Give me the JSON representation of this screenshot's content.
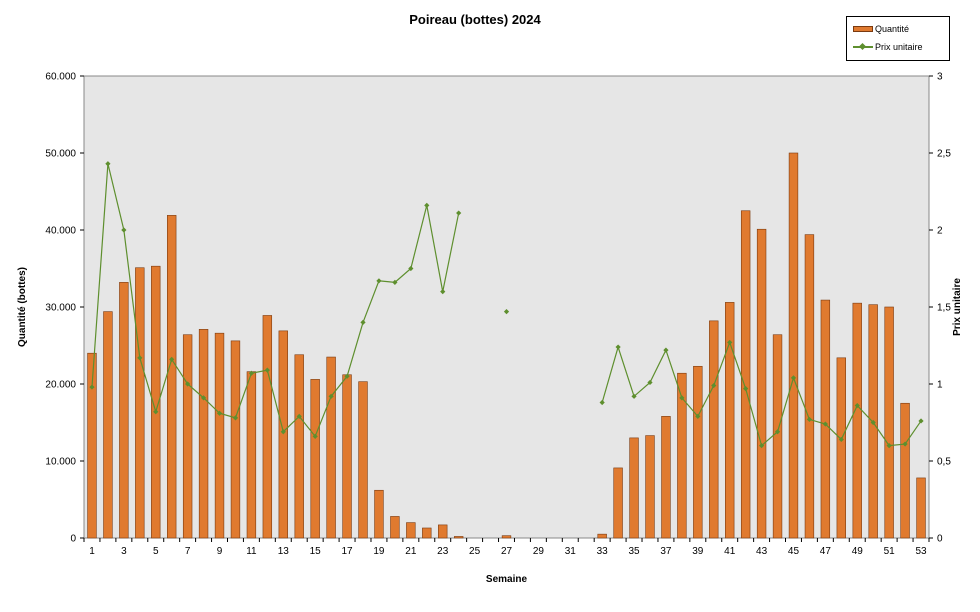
{
  "chart_data": {
    "type": "bar",
    "title": "Poireau (bottes) 2024",
    "xlabel": "Semaine",
    "ylabel": "Quantité (bottes)",
    "y2label": "Prix unitaire",
    "ylim": [
      0,
      60000
    ],
    "y2lim": [
      0,
      3
    ],
    "yticks": [
      "0",
      "10.000",
      "20.000",
      "30.000",
      "40.000",
      "50.000",
      "60.000"
    ],
    "y2ticks": [
      "0",
      "0,5",
      "1",
      "1,5",
      "2",
      "2,5",
      "3"
    ],
    "xtick_labels": [
      "1",
      "3",
      "5",
      "7",
      "9",
      "11",
      "13",
      "15",
      "17",
      "19",
      "21",
      "23",
      "25",
      "27",
      "29",
      "31",
      "33",
      "35",
      "37",
      "39",
      "41",
      "43",
      "45",
      "47",
      "49",
      "51",
      "53"
    ],
    "legend_position": "top-right",
    "plot_background": "#E6E6E6",
    "grid": false,
    "x": [
      1,
      2,
      3,
      4,
      5,
      6,
      7,
      8,
      9,
      10,
      11,
      12,
      13,
      14,
      15,
      16,
      17,
      18,
      19,
      20,
      21,
      22,
      23,
      24,
      25,
      26,
      27,
      28,
      29,
      30,
      31,
      32,
      33,
      34,
      35,
      36,
      37,
      38,
      39,
      40,
      41,
      42,
      43,
      44,
      45,
      46,
      47,
      48,
      49,
      50,
      51,
      52,
      53
    ],
    "series": [
      {
        "name": "Quantité",
        "kind": "bar",
        "color": "#E07A2F",
        "values": [
          24000,
          29400,
          33200,
          35100,
          35300,
          41900,
          26400,
          27100,
          26600,
          25600,
          21600,
          28900,
          26900,
          23800,
          20600,
          23500,
          21200,
          20300,
          6200,
          2800,
          2000,
          1300,
          1700,
          200,
          0,
          0,
          300,
          0,
          0,
          0,
          0,
          0,
          500,
          9100,
          13000,
          13300,
          15800,
          21400,
          22300,
          28200,
          30600,
          42500,
          40100,
          26400,
          50000,
          39400,
          30900,
          23400,
          30500,
          30300,
          30000,
          17500,
          7800
        ]
      },
      {
        "name": "Prix unitaire",
        "kind": "line",
        "color": "#5E8F2E",
        "values": [
          0.98,
          2.43,
          2.0,
          1.17,
          0.82,
          1.16,
          1.0,
          0.91,
          0.81,
          0.78,
          1.07,
          1.09,
          0.69,
          0.79,
          0.66,
          0.92,
          1.05,
          1.4,
          1.67,
          1.66,
          1.75,
          2.16,
          1.6,
          2.11,
          null,
          null,
          1.47,
          null,
          null,
          null,
          null,
          null,
          0.88,
          1.24,
          0.92,
          1.01,
          1.22,
          0.91,
          0.79,
          0.99,
          1.27,
          0.97,
          0.6,
          0.69,
          1.04,
          0.77,
          0.74,
          0.64,
          0.86,
          0.75,
          0.6,
          0.61,
          0.76
        ]
      }
    ]
  }
}
